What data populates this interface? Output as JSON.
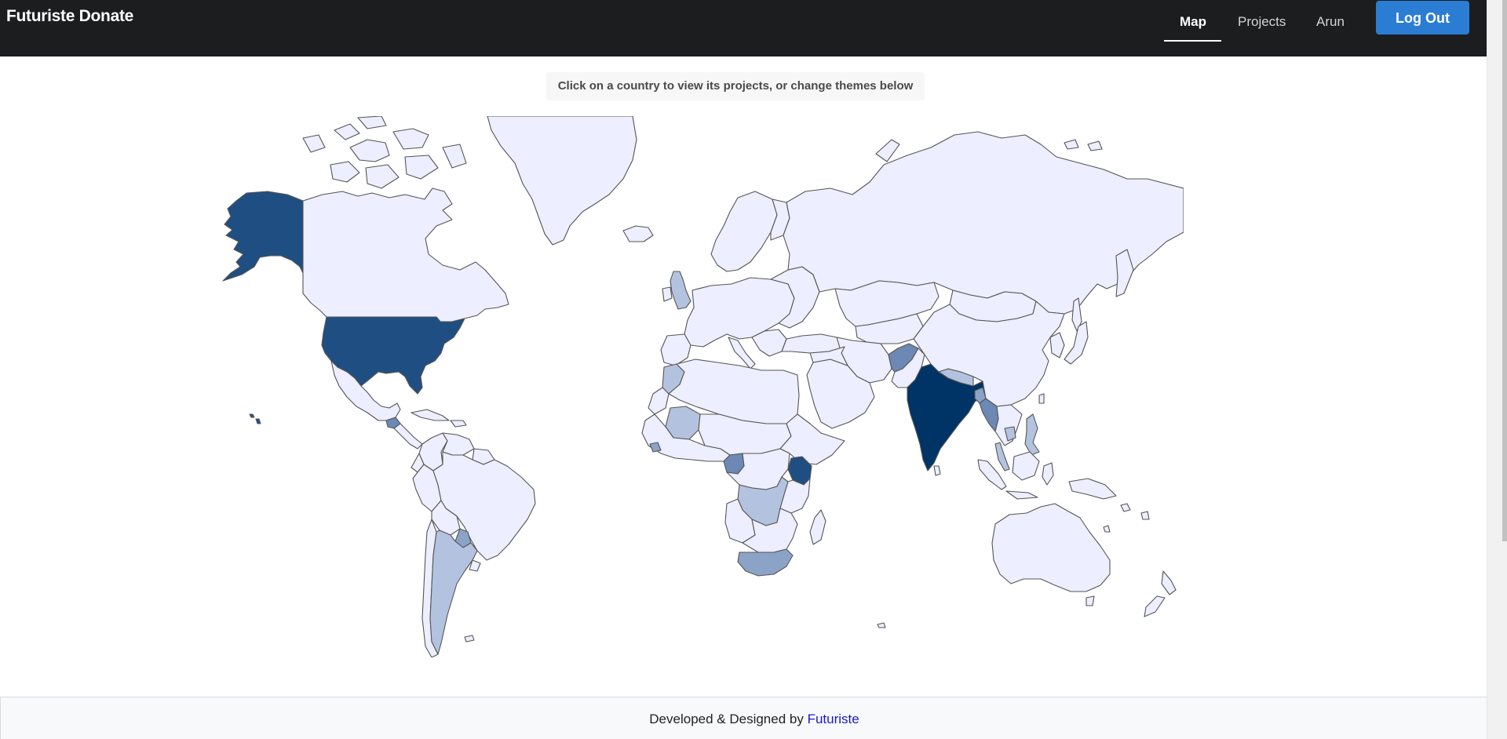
{
  "navbar": {
    "brand": "Futuriste Donate",
    "links": [
      {
        "label": "Map",
        "active": true
      },
      {
        "label": "Projects",
        "active": false
      },
      {
        "label": "Arun",
        "active": false
      }
    ],
    "logout_label": "Log Out"
  },
  "hint": "Click on a country to view its projects, or change themes below",
  "map": {
    "colors": {
      "none": "#edeeff",
      "low": "#b3c3df",
      "medium": "#8ca3c8",
      "high": "#6c88b4",
      "very_high": "#1f4f82",
      "max": "#003366",
      "border": "#555555"
    },
    "highlighted_countries": [
      {
        "name": "United States",
        "level": "very_high"
      },
      {
        "name": "India",
        "level": "max"
      },
      {
        "name": "Afghanistan",
        "level": "high"
      },
      {
        "name": "Kenya",
        "level": "very_high"
      },
      {
        "name": "Cameroon",
        "level": "high"
      },
      {
        "name": "DR Congo",
        "level": "low"
      },
      {
        "name": "South Africa",
        "level": "medium"
      },
      {
        "name": "Argentina",
        "level": "low"
      },
      {
        "name": "Paraguay",
        "level": "medium"
      },
      {
        "name": "United Kingdom",
        "level": "low"
      },
      {
        "name": "Morocco",
        "level": "low"
      },
      {
        "name": "Mali",
        "level": "low"
      },
      {
        "name": "Guatemala",
        "level": "high"
      },
      {
        "name": "Nepal",
        "level": "low"
      },
      {
        "name": "Bangladesh",
        "level": "medium"
      },
      {
        "name": "Myanmar",
        "level": "high"
      },
      {
        "name": "Philippines",
        "level": "low"
      },
      {
        "name": "Cambodia",
        "level": "low"
      },
      {
        "name": "Malaysia",
        "level": "low"
      },
      {
        "name": "Sierra Leone",
        "level": "medium"
      }
    ]
  },
  "footer": {
    "prefix": "Developed & Designed by ",
    "link_label": "Futuriste"
  }
}
